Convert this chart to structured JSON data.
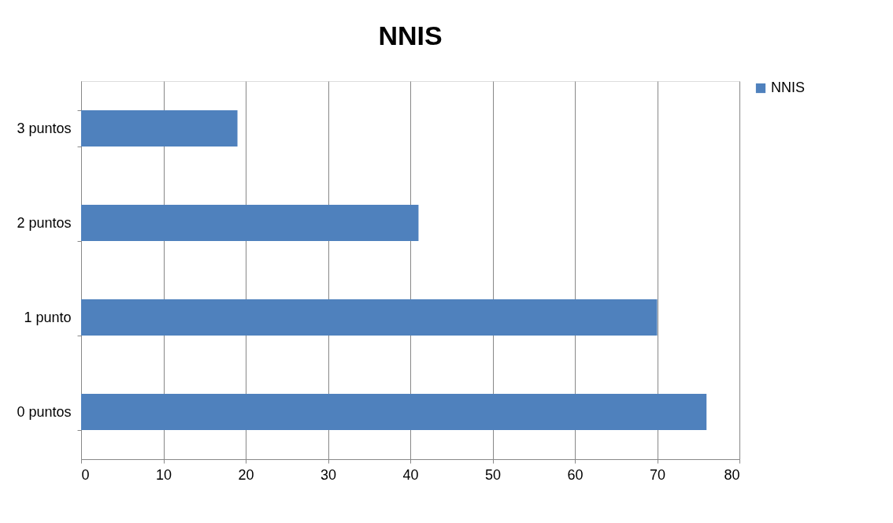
{
  "chart_data": {
    "type": "bar",
    "orientation": "horizontal",
    "title": "NNIS",
    "categories": [
      "3 puntos",
      "2 puntos",
      "1 punto",
      "0 puntos"
    ],
    "series": [
      {
        "name": "NNIS",
        "color": "#4f81bd",
        "values": [
          19,
          41,
          70,
          76
        ]
      }
    ],
    "xlim": [
      0,
      80
    ],
    "xticks": [
      0,
      10,
      20,
      30,
      40,
      50,
      60,
      70,
      80
    ],
    "grid": "x",
    "legend": "right"
  }
}
